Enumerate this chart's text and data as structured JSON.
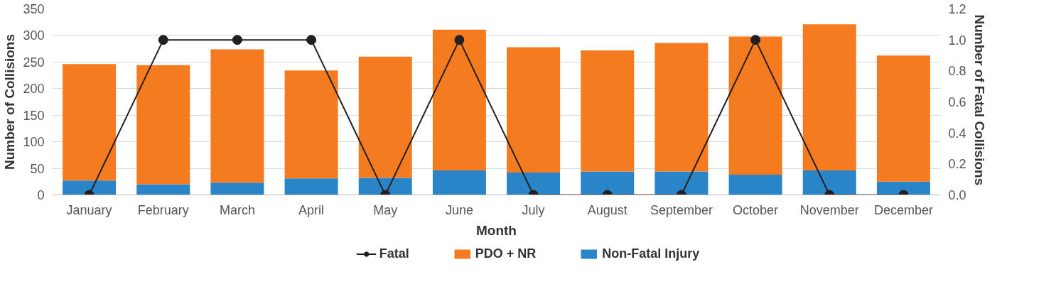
{
  "chart_data": {
    "type": "bar",
    "stacked": true,
    "xlabel": "Month",
    "ylabel": "Number of Collisions",
    "y2label": "Number of  Fatal Collisions",
    "categories": [
      "January",
      "February",
      "March",
      "April",
      "May",
      "June",
      "July",
      "August",
      "September",
      "October",
      "November",
      "December"
    ],
    "series": [
      {
        "name": "Non-Fatal Injury",
        "color": "#2a85c8",
        "values": [
          27,
          20,
          23,
          31,
          32,
          46,
          42,
          44,
          44,
          38,
          46,
          25
        ]
      },
      {
        "name": "PDO + NR",
        "color": "#f47b20",
        "values": [
          219,
          224,
          251,
          203,
          228,
          265,
          236,
          228,
          242,
          260,
          275,
          237
        ]
      },
      {
        "name": "Fatal",
        "type": "line",
        "axis": "y2",
        "color": "#231f20",
        "marker": "circle",
        "values": [
          0,
          1,
          1,
          1,
          0,
          1,
          0,
          0,
          0,
          1,
          0,
          0
        ]
      }
    ],
    "ylim": [
      0,
      350
    ],
    "yticks": [
      0,
      50,
      100,
      150,
      200,
      250,
      300,
      350
    ],
    "y2lim": [
      0,
      1.2
    ],
    "y2ticks": [
      {
        "value": 0,
        "label": "0.0"
      },
      {
        "value": 0.2,
        "label": "0.2"
      },
      {
        "value": 0.4,
        "label": "0.4"
      },
      {
        "value": 0.6,
        "label": "0.6"
      },
      {
        "value": 0.8,
        "label": "0.8"
      },
      {
        "value": 1,
        "label": "1.0"
      },
      {
        "value": 1.2,
        "label": "1.2"
      }
    ],
    "grid": "y",
    "legend": "bottom"
  }
}
